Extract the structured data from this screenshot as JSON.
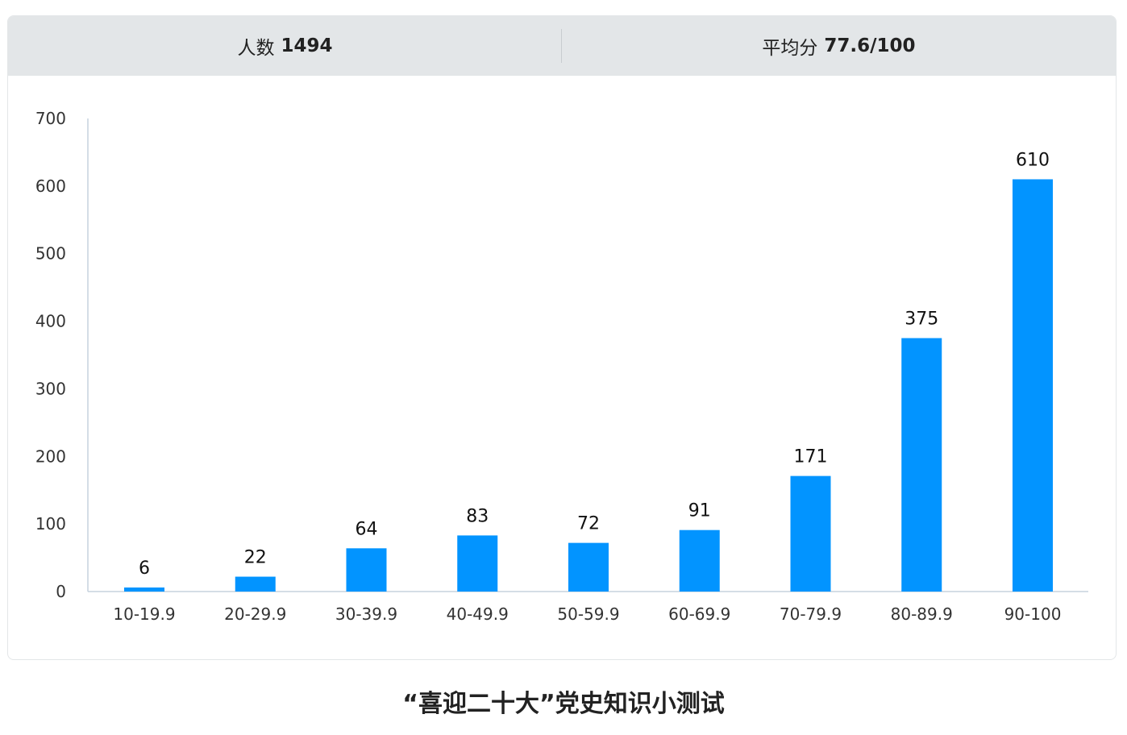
{
  "stats": {
    "count_label": "人数",
    "count_value": "1494",
    "avg_label": "平均分",
    "avg_value": "77.6/100"
  },
  "caption": "“喜迎二十大”党史知识小测试",
  "colors": {
    "bar": "#0294ff",
    "axis": "#c5d2de"
  },
  "chart_data": {
    "type": "bar",
    "categories": [
      "10-19.9",
      "20-29.9",
      "30-39.9",
      "40-49.9",
      "50-59.9",
      "60-69.9",
      "70-79.9",
      "80-89.9",
      "90-100"
    ],
    "values": [
      6,
      22,
      64,
      83,
      72,
      91,
      171,
      375,
      610
    ],
    "ylim": [
      0,
      700
    ],
    "yticks": [
      0,
      100,
      200,
      300,
      400,
      500,
      600,
      700
    ],
    "grid": false,
    "legend": "none",
    "data_labels": true
  }
}
